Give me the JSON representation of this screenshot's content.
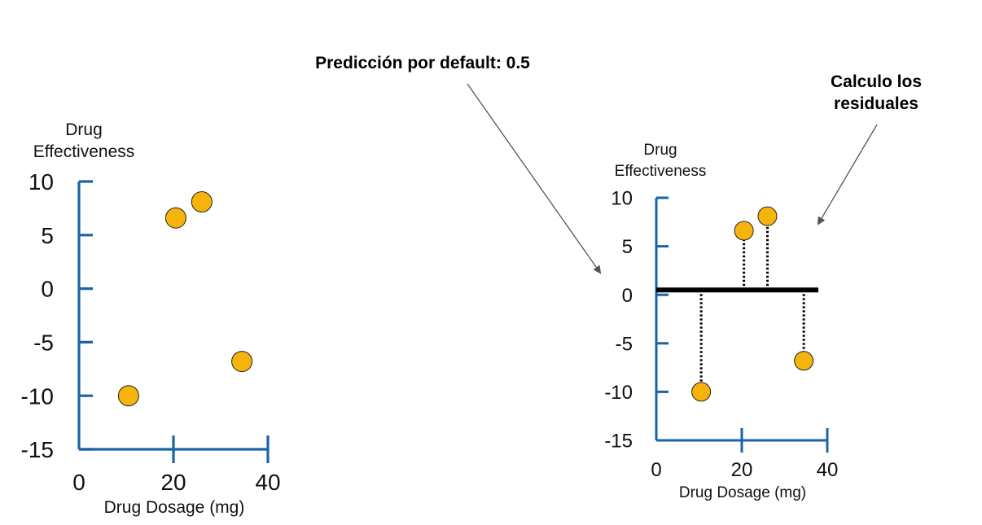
{
  "annotations": {
    "default_prediction": "Predicción por default: 0.5",
    "residuals_line1": "Calculo los",
    "residuals_line2": "residuales"
  },
  "chart_data": [
    {
      "type": "scatter",
      "xlabel": "Drug Dosage (mg)",
      "ylabel_line1": "Drug",
      "ylabel_line2": "Effectiveness",
      "xlim": [
        0,
        40
      ],
      "ylim": [
        -15,
        10
      ],
      "xticks": [
        "0",
        "20",
        "40"
      ],
      "yticks": [
        "10",
        "5",
        "0",
        "-5",
        "-10",
        "-15"
      ],
      "x": [
        10.5,
        20.5,
        26,
        34.5
      ],
      "y": [
        -10,
        6.6,
        8.1,
        -6.8
      ],
      "colors": {
        "axis": "#1a63a8",
        "point": "#f5b30c"
      }
    },
    {
      "type": "scatter",
      "xlabel": "Drug Dosage (mg)",
      "ylabel_line1": "Drug",
      "ylabel_line2": "Effectiveness",
      "xlim": [
        0,
        40
      ],
      "ylim": [
        -15,
        10
      ],
      "xticks": [
        "0",
        "20",
        "40"
      ],
      "yticks": [
        "10",
        "5",
        "0",
        "-5",
        "-10",
        "-15"
      ],
      "x": [
        10.5,
        20.5,
        26,
        34.5
      ],
      "y": [
        -10,
        6.6,
        8.1,
        -6.8
      ],
      "prediction": 0.5,
      "show_residuals": true,
      "colors": {
        "axis": "#1a63a8",
        "point": "#f5b30c",
        "prediction": "#000000"
      }
    }
  ]
}
